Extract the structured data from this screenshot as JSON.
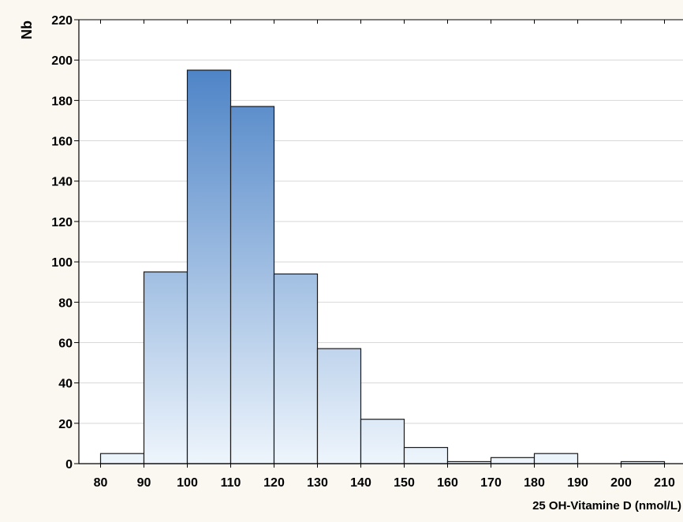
{
  "chart_data": {
    "type": "bar",
    "title": "",
    "xlabel": "25 OH-Vitamine D (nmol/L)",
    "ylabel": "Nb",
    "ylim": [
      0,
      220
    ],
    "y_ticks": [
      0,
      20,
      40,
      60,
      80,
      100,
      120,
      140,
      160,
      180,
      200,
      220
    ],
    "x_ticks": [
      80,
      90,
      100,
      110,
      120,
      130,
      140,
      150,
      160,
      170,
      180,
      190,
      200,
      210
    ],
    "bins": [
      {
        "start": 80,
        "end": 90,
        "value": 5
      },
      {
        "start": 90,
        "end": 100,
        "value": 95
      },
      {
        "start": 100,
        "end": 110,
        "value": 195
      },
      {
        "start": 110,
        "end": 120,
        "value": 177
      },
      {
        "start": 120,
        "end": 130,
        "value": 94
      },
      {
        "start": 130,
        "end": 140,
        "value": 57
      },
      {
        "start": 140,
        "end": 150,
        "value": 22
      },
      {
        "start": 150,
        "end": 160,
        "value": 8
      },
      {
        "start": 160,
        "end": 170,
        "value": 1
      },
      {
        "start": 170,
        "end": 180,
        "value": 3
      },
      {
        "start": 180,
        "end": 190,
        "value": 5
      },
      {
        "start": 190,
        "end": 200,
        "value": 0
      },
      {
        "start": 200,
        "end": 210,
        "value": 1
      }
    ],
    "grid": true,
    "legend": "none",
    "colors": {
      "bar_top": "#3a76c0",
      "bar_bottom": "#eef5fc",
      "bar_stroke": "#1a1a1a",
      "grid": "#d8d8d8",
      "background": "#fbf8f1"
    }
  }
}
